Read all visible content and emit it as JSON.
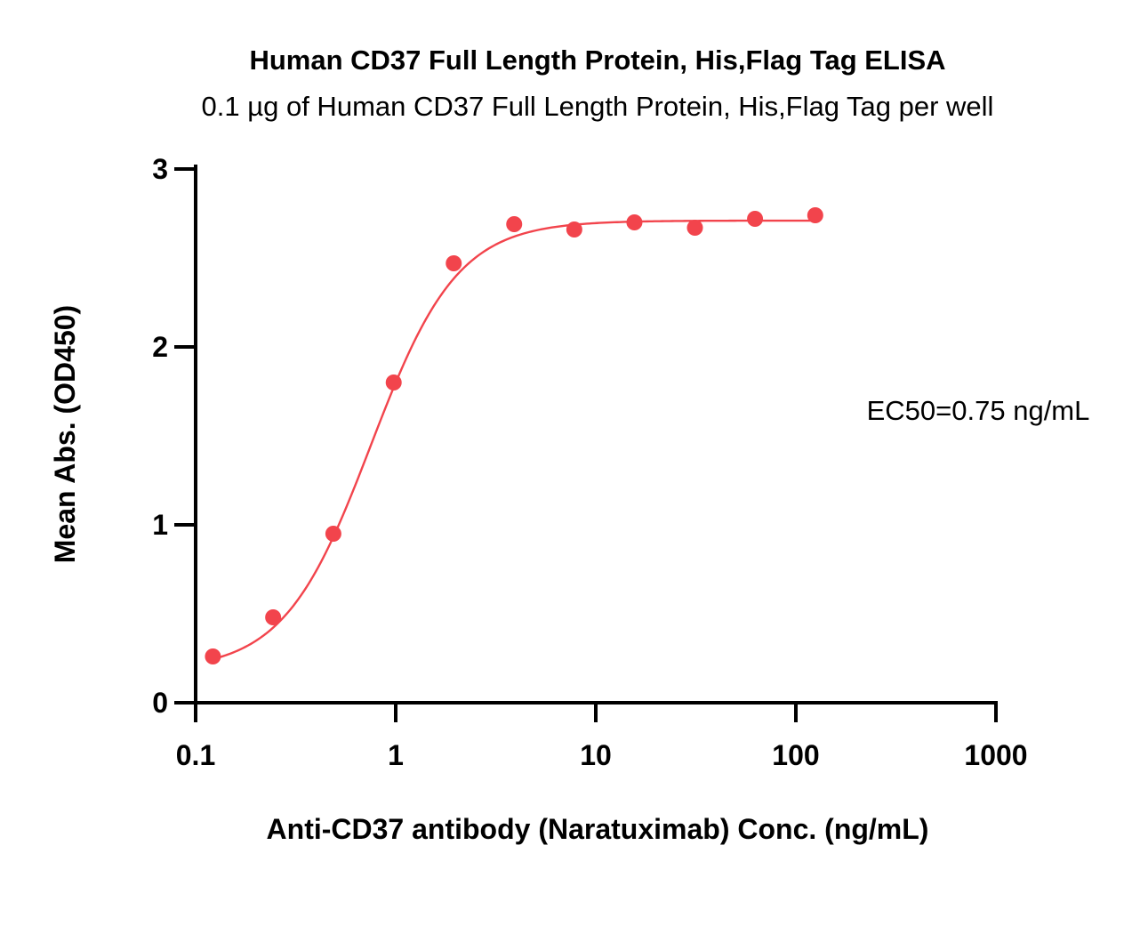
{
  "chart_data": {
    "type": "scatter",
    "title": "Human CD37 Full Length Protein, His,Flag Tag ELISA",
    "subtitle": "0.1 µg of Human CD37 Full Length Protein, His,Flag Tag per well",
    "xlabel": "Anti-CD37 antibody (Naratuximab) Conc. (ng/mL)",
    "ylabel": "Mean Abs. (OD450)",
    "xscale": "log",
    "xlim": [
      0.1,
      1000
    ],
    "ylim": [
      0,
      3
    ],
    "x_ticks": [
      0.1,
      1,
      10,
      100,
      1000
    ],
    "x_tick_labels": [
      "0.1",
      "1",
      "10",
      "100",
      "1000"
    ],
    "y_ticks": [
      0,
      1,
      2,
      3
    ],
    "y_tick_labels": [
      "0",
      "1",
      "2",
      "3"
    ],
    "grid": false,
    "series": [
      {
        "color": "#f2444c",
        "x": [
          0.122,
          0.244,
          0.488,
          0.977,
          1.95,
          3.91,
          7.81,
          15.6,
          31.3,
          62.5,
          125
        ],
        "y": [
          0.26,
          0.48,
          0.95,
          1.8,
          2.47,
          2.69,
          2.66,
          2.7,
          2.67,
          2.72,
          2.74
        ]
      }
    ],
    "fit": {
      "model": "4PL",
      "bottom": 0.18,
      "top": 2.71,
      "ec50": 0.75,
      "hill": 2.0,
      "color": "#f2444c"
    },
    "annotation": "EC50=0.75 ng/mL"
  }
}
